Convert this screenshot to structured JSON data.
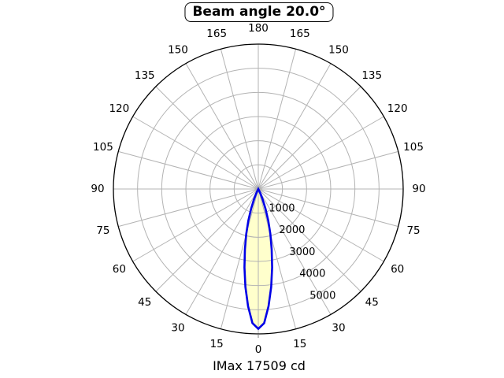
{
  "title": "Beam angle 20.0°",
  "footer": "IMax 17509 cd",
  "colors": {
    "background": "#ffffff",
    "grid": "#b3b3b3",
    "outer_circle": "#000000",
    "beam_stroke": "#0000e6",
    "beam_fill": "#ffffcc",
    "text": "#000000"
  },
  "chart_data": {
    "type": "line",
    "subtype": "polar-photometric-intensity",
    "title": "Beam angle 20.0°",
    "footer_label": "IMax 17509 cd",
    "beam_angle_deg": 20.0,
    "imax_cd": 17509,
    "orientation": "0-degrees-at-bottom",
    "grid_on": true,
    "angle_grid_step_deg": 15,
    "angle_tick_labels": [
      0,
      15,
      30,
      45,
      60,
      75,
      90,
      105,
      120,
      135,
      150,
      165,
      180
    ],
    "r_tick_labels": [
      1000,
      2000,
      3000,
      4000,
      5000
    ],
    "r_max": 6000,
    "series": [
      {
        "name": "luminous-intensity-lobe",
        "symmetric": true,
        "angles_deg": [
          0,
          2.5,
          5,
          7.5,
          10,
          12.5,
          15,
          17.5,
          20,
          22.5,
          25,
          27.5,
          30
        ],
        "values": [
          5790,
          5560,
          4870,
          4090,
          3300,
          2560,
          1930,
          1370,
          870,
          480,
          220,
          80,
          0
        ]
      }
    ]
  }
}
